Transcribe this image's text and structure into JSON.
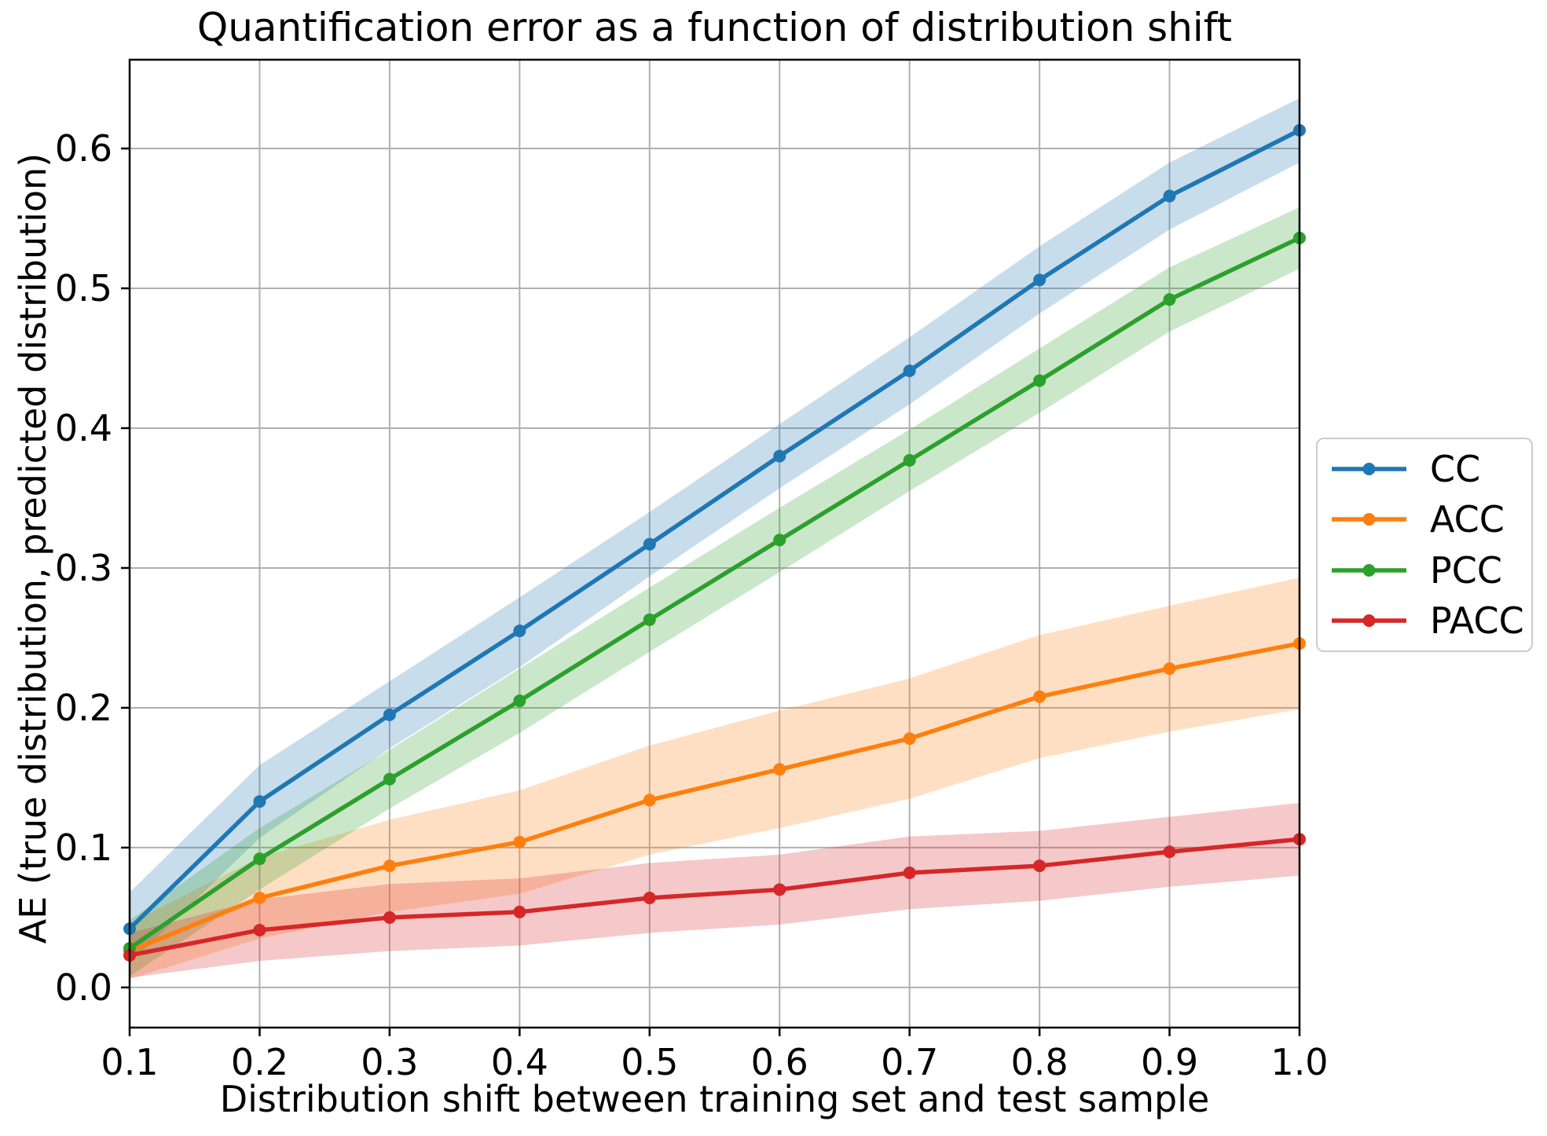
{
  "figure": {
    "title": "Quantification error as a function of distribution shift",
    "xlabel": "Distribution shift between training set and test sample",
    "ylabel": "AE (true distribution, predicted distribution)"
  },
  "colors": {
    "background": "#ffffff",
    "grid": "#b0b0b0",
    "spine": "#000000",
    "tick_text": "#000000",
    "legend_border": "#cccccc"
  },
  "chart_data": {
    "type": "line",
    "title": "Quantification error as a function of distribution shift",
    "xlabel": "Distribution shift between training set and test sample",
    "ylabel": "AE (true distribution, predicted distribution)",
    "grid": true,
    "legend_position": "right-outside",
    "marker": "circle",
    "band_opacity": 0.25,
    "xlim": [
      0.1,
      1.0
    ],
    "ylim": [
      -0.0287,
      0.6635
    ],
    "x": [
      0.1,
      0.2,
      0.3,
      0.4,
      0.5,
      0.6,
      0.7,
      0.8,
      0.9,
      1.0
    ],
    "x_tick_labels": [
      "0.1",
      "0.2",
      "0.3",
      "0.4",
      "0.5",
      "0.6",
      "0.7",
      "0.8",
      "0.9",
      "1.0"
    ],
    "y_ticks": [
      0.0,
      0.1,
      0.2,
      0.3,
      0.4,
      0.5,
      0.6
    ],
    "y_tick_labels": [
      "0.0",
      "0.1",
      "0.2",
      "0.3",
      "0.4",
      "0.5",
      "0.6"
    ],
    "series": [
      {
        "name": "CC",
        "color": "#1f77b4",
        "values": [
          0.042,
          0.133,
          0.195,
          0.255,
          0.317,
          0.38,
          0.441,
          0.506,
          0.566,
          0.613
        ],
        "band_low": [
          0.017,
          0.107,
          0.171,
          0.229,
          0.294,
          0.357,
          0.417,
          0.482,
          0.542,
          0.59
        ],
        "band_high": [
          0.068,
          0.159,
          0.219,
          0.279,
          0.34,
          0.403,
          0.465,
          0.53,
          0.59,
          0.636
        ]
      },
      {
        "name": "ACC",
        "color": "#ff7f0e",
        "values": [
          0.026,
          0.064,
          0.087,
          0.104,
          0.134,
          0.156,
          0.178,
          0.208,
          0.228,
          0.246
        ],
        "band_low": [
          0.006,
          0.035,
          0.054,
          0.067,
          0.095,
          0.114,
          0.135,
          0.164,
          0.183,
          0.199
        ],
        "band_high": [
          0.046,
          0.093,
          0.12,
          0.141,
          0.173,
          0.198,
          0.221,
          0.252,
          0.273,
          0.293
        ]
      },
      {
        "name": "PCC",
        "color": "#2ca02c",
        "values": [
          0.028,
          0.092,
          0.149,
          0.205,
          0.263,
          0.32,
          0.377,
          0.434,
          0.492,
          0.536
        ],
        "band_low": [
          0.008,
          0.07,
          0.128,
          0.182,
          0.24,
          0.297,
          0.355,
          0.411,
          0.469,
          0.514
        ],
        "band_high": [
          0.048,
          0.114,
          0.17,
          0.228,
          0.286,
          0.343,
          0.399,
          0.457,
          0.515,
          0.558
        ]
      },
      {
        "name": "PACC",
        "color": "#d62728",
        "values": [
          0.023,
          0.041,
          0.05,
          0.054,
          0.064,
          0.07,
          0.082,
          0.087,
          0.097,
          0.106
        ],
        "band_low": [
          0.007,
          0.019,
          0.026,
          0.03,
          0.039,
          0.045,
          0.056,
          0.062,
          0.072,
          0.08
        ],
        "band_high": [
          0.039,
          0.063,
          0.074,
          0.078,
          0.089,
          0.095,
          0.108,
          0.112,
          0.122,
          0.132
        ]
      }
    ]
  }
}
